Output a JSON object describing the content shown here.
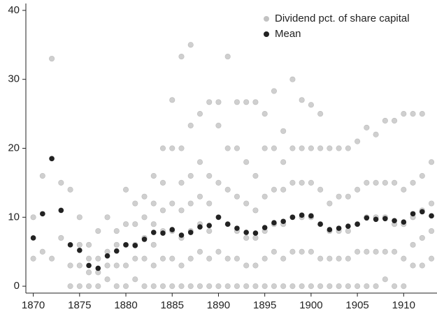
{
  "chart_data": {
    "type": "scatter",
    "series": [
      {
        "name": "Dividend pct. of share capital",
        "color": "#a8a8a8",
        "x": [
          1870,
          1870,
          1871,
          1871,
          1872,
          1872,
          1873,
          1873,
          1874,
          1874,
          1874,
          1875,
          1875,
          1875,
          1875,
          1876,
          1876,
          1876,
          1876,
          1877,
          1877,
          1877,
          1877,
          1878,
          1878,
          1878,
          1878,
          1879,
          1879,
          1879,
          1879,
          1880,
          1880,
          1880,
          1880,
          1880,
          1881,
          1881,
          1881,
          1881,
          1881,
          1882,
          1882,
          1882,
          1882,
          1882,
          1883,
          1883,
          1883,
          1883,
          1883,
          1883,
          1884,
          1884,
          1884,
          1884,
          1884,
          1884,
          1885,
          1885,
          1885,
          1885,
          1885,
          1885,
          1886,
          1886,
          1886,
          1886,
          1886,
          1886,
          1886,
          1887,
          1887,
          1887,
          1887,
          1887,
          1887,
          1887,
          1888,
          1888,
          1888,
          1888,
          1888,
          1888,
          1889,
          1889,
          1889,
          1889,
          1889,
          1889,
          1890,
          1890,
          1890,
          1890,
          1890,
          1890,
          1891,
          1891,
          1891,
          1891,
          1891,
          1891,
          1892,
          1892,
          1892,
          1892,
          1892,
          1892,
          1893,
          1893,
          1893,
          1893,
          1893,
          1893,
          1894,
          1894,
          1894,
          1894,
          1894,
          1894,
          1895,
          1895,
          1895,
          1895,
          1895,
          1895,
          1896,
          1896,
          1896,
          1896,
          1896,
          1896,
          1897,
          1897,
          1897,
          1897,
          1897,
          1897,
          1898,
          1898,
          1898,
          1898,
          1898,
          1898,
          1899,
          1899,
          1899,
          1899,
          1899,
          1899,
          1900,
          1900,
          1900,
          1900,
          1900,
          1900,
          1901,
          1901,
          1901,
          1901,
          1901,
          1901,
          1902,
          1902,
          1902,
          1902,
          1902,
          1903,
          1903,
          1903,
          1903,
          1903,
          1904,
          1904,
          1904,
          1904,
          1904,
          1905,
          1905,
          1905,
          1905,
          1905,
          1906,
          1906,
          1906,
          1906,
          1906,
          1907,
          1907,
          1907,
          1907,
          1907,
          1908,
          1908,
          1908,
          1908,
          1908,
          1909,
          1909,
          1909,
          1909,
          1909,
          1910,
          1910,
          1910,
          1910,
          1910,
          1911,
          1911,
          1911,
          1911,
          1911,
          1912,
          1912,
          1912,
          1912,
          1912,
          1913,
          1913,
          1913,
          1913
        ],
        "values": [
          4,
          10,
          5,
          16,
          4,
          33,
          7,
          15,
          0,
          3,
          14,
          0,
          3,
          6,
          10,
          0,
          2,
          4,
          6,
          0,
          2,
          4,
          8,
          1,
          3,
          5,
          10,
          0,
          3,
          6,
          8,
          0,
          3,
          6,
          9,
          14,
          1,
          4,
          6,
          9,
          12,
          0,
          4,
          7,
          10,
          13,
          0,
          3,
          6,
          9,
          12,
          16,
          0,
          4,
          8,
          11,
          15,
          20,
          0,
          4,
          8,
          12,
          20,
          27,
          0,
          3,
          7,
          11,
          15,
          20,
          33.3,
          0,
          4,
          8,
          12,
          16,
          23.3,
          35,
          0,
          5,
          9,
          13,
          18,
          25,
          0,
          4,
          8,
          12,
          16,
          26.7,
          0,
          5,
          10,
          15,
          23.3,
          26.7,
          0,
          4,
          9,
          14,
          20,
          33.3,
          0,
          4,
          8,
          13,
          20,
          26.7,
          0,
          3,
          7,
          12,
          18,
          26.7,
          0,
          3,
          7,
          11,
          16,
          26.7,
          0,
          4,
          8,
          13,
          20,
          25,
          0,
          5,
          9,
          14,
          20,
          28.3,
          0,
          4,
          9,
          14,
          18,
          22.5,
          0,
          5,
          10,
          15,
          20,
          30,
          0,
          5,
          10,
          15,
          20,
          27,
          0,
          5,
          10,
          15,
          20,
          26.3,
          0,
          4,
          9,
          14,
          20,
          25,
          0,
          4,
          8,
          12,
          20,
          0,
          4,
          8,
          13,
          20,
          0,
          4,
          8,
          13,
          20,
          0,
          5,
          9,
          14,
          21,
          0,
          5,
          10,
          15,
          23,
          0,
          5,
          10,
          15,
          22,
          1,
          5,
          10,
          15,
          24,
          0,
          5,
          9,
          15,
          24,
          0,
          4,
          9,
          14,
          25,
          3,
          6,
          10,
          15,
          25,
          3,
          7,
          11,
          16,
          25,
          4,
          8,
          12,
          18
        ]
      },
      {
        "name": "Mean",
        "color": "#222222",
        "x": [
          1870,
          1871,
          1872,
          1873,
          1874,
          1875,
          1876,
          1877,
          1878,
          1879,
          1880,
          1881,
          1882,
          1883,
          1884,
          1885,
          1886,
          1887,
          1888,
          1889,
          1890,
          1891,
          1892,
          1893,
          1894,
          1895,
          1896,
          1897,
          1898,
          1899,
          1900,
          1901,
          1902,
          1903,
          1904,
          1905,
          1906,
          1907,
          1908,
          1909,
          1910,
          1911,
          1912,
          1913
        ],
        "values": [
          7,
          10.5,
          18.5,
          11,
          6,
          5.2,
          3,
          2.6,
          4.4,
          5.1,
          6,
          5.9,
          6.8,
          7.8,
          7.7,
          8.2,
          7.4,
          7.8,
          8.6,
          8.8,
          10,
          9,
          8.4,
          7.8,
          7.7,
          8.5,
          9.2,
          9.4,
          10,
          10.3,
          10.2,
          9,
          8.2,
          8.4,
          8.7,
          9,
          9.9,
          9.7,
          9.8,
          9.5,
          9.3,
          10.5,
          10.8,
          10.2
        ]
      }
    ],
    "xlim": [
      1869.2,
      1913.6
    ],
    "xticks": [
      1870,
      1875,
      1880,
      1885,
      1890,
      1895,
      1900,
      1905,
      1910
    ],
    "ylim": [
      -1,
      41
    ],
    "yticks": [
      0,
      10,
      20,
      30,
      40
    ],
    "legend": "upper right"
  }
}
